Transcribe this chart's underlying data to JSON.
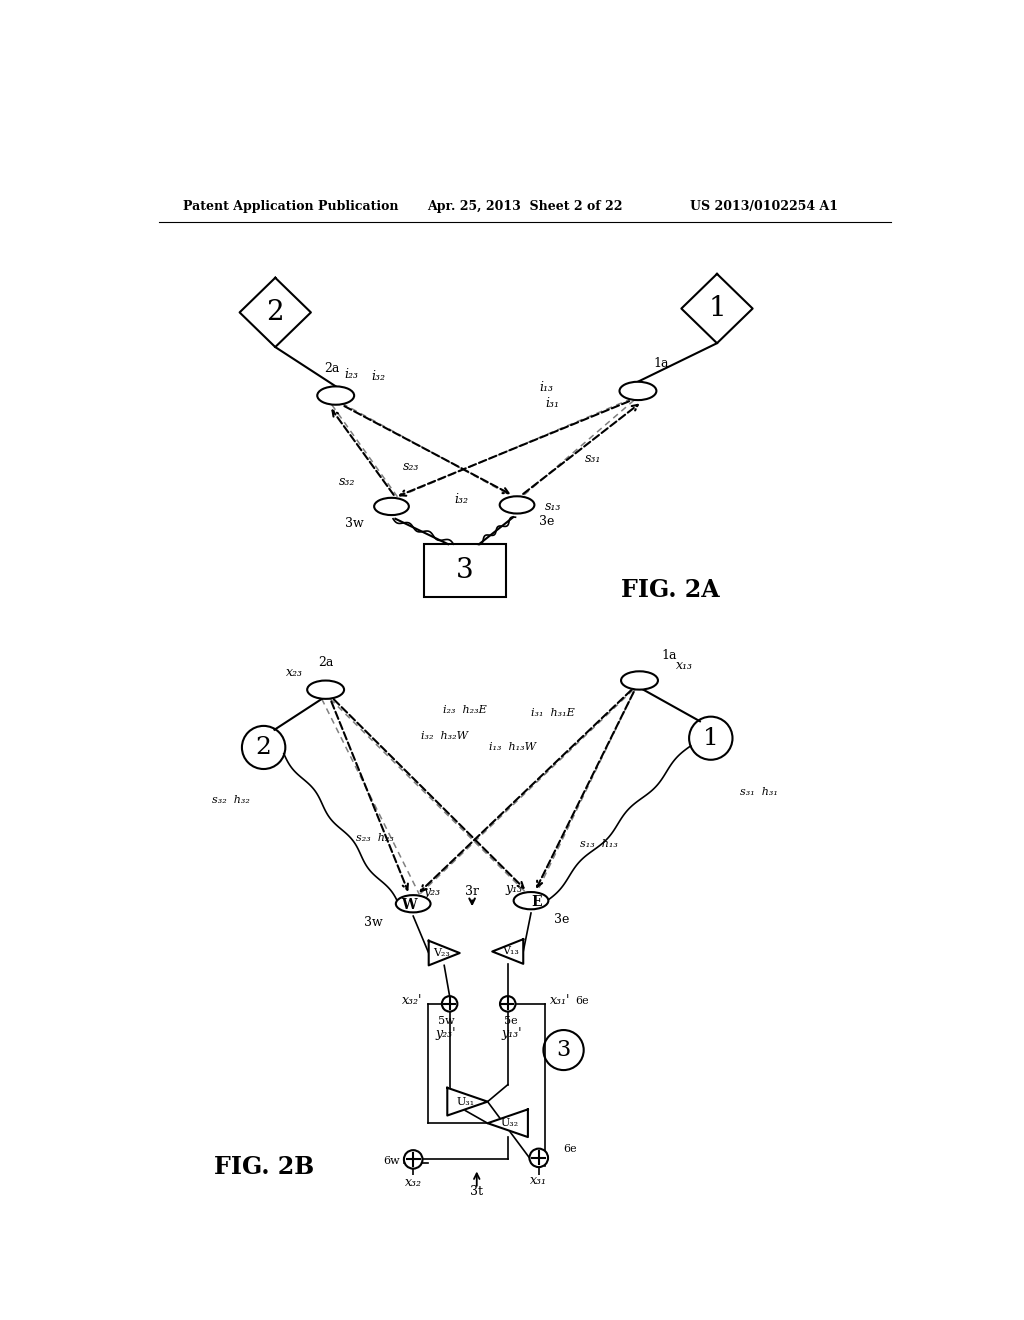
{
  "header_left": "Patent Application Publication",
  "header_mid": "Apr. 25, 2013  Sheet 2 of 22",
  "header_right": "US 2013/0102254 A1",
  "fig2a_label": "FIG. 2A",
  "fig2b_label": "FIG. 2B",
  "background": "#ffffff",
  "line_color": "#000000",
  "dotted_color": "#888888"
}
